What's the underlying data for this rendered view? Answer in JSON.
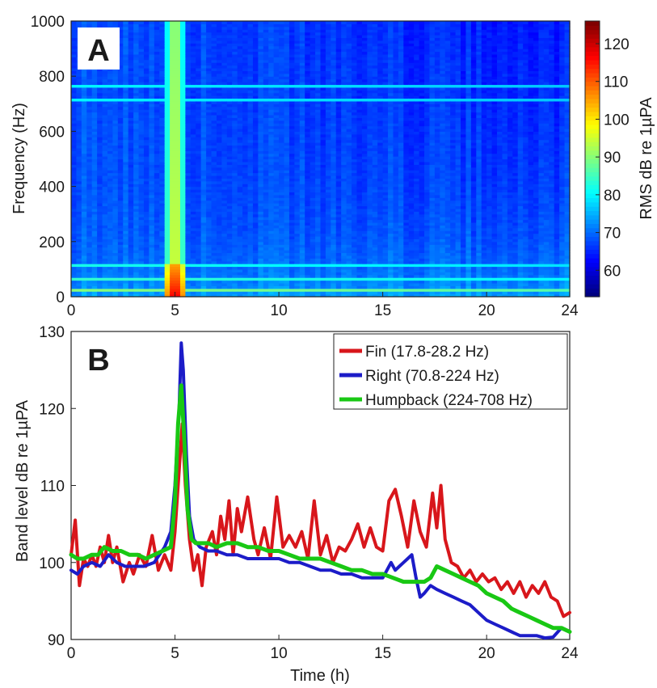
{
  "chart_data": [
    {
      "panel": "A",
      "type": "heatmap",
      "xlabel": "",
      "ylabel": "Frequency (Hz)",
      "xlim": [
        0,
        24
      ],
      "ylim": [
        0,
        1000
      ],
      "xticks": [
        "0",
        "5",
        "10",
        "15",
        "20",
        "24"
      ],
      "yticks": [
        "0",
        "200",
        "400",
        "600",
        "800",
        "1000"
      ],
      "colorbar": {
        "label": "RMS dB re 1µPA",
        "range": [
          53,
          126
        ],
        "ticks": [
          "60",
          "70",
          "80",
          "90",
          "100",
          "110",
          "120"
        ],
        "colormap": "jet"
      },
      "background_level_db": 68,
      "features": [
        {
          "kind": "vertical_band",
          "time_h": 5.0,
          "level_db": 100,
          "hot_level_db": 122,
          "hot_freq_range": [
            0,
            120
          ]
        },
        {
          "kind": "horizontal_band",
          "freq_hz": 25,
          "level_db": 90
        },
        {
          "kind": "horizontal_band",
          "freq_hz": 60,
          "level_db": 84
        },
        {
          "kind": "horizontal_band",
          "freq_hz": 110,
          "level_db": 82
        },
        {
          "kind": "horizontal_band",
          "freq_hz": 710,
          "level_db": 80
        },
        {
          "kind": "horizontal_band",
          "freq_hz": 760,
          "level_db": 80
        }
      ]
    },
    {
      "panel": "B",
      "type": "line",
      "xlabel": "Time (h)",
      "ylabel": "Band level dB re 1µPA",
      "xlim": [
        0,
        24
      ],
      "ylim": [
        90,
        130
      ],
      "xticks": [
        "0",
        "5",
        "10",
        "15",
        "20",
        "24"
      ],
      "yticks": [
        "90",
        "100",
        "110",
        "120",
        "130"
      ],
      "legend_position": "top-right",
      "series": [
        {
          "name": "Fin (17.8-28.2 Hz)",
          "color": "#d8161b",
          "x": [
            0,
            0.2,
            0.4,
            0.6,
            0.8,
            1.0,
            1.2,
            1.4,
            1.6,
            1.8,
            2.0,
            2.2,
            2.5,
            2.8,
            3.0,
            3.3,
            3.6,
            3.9,
            4.2,
            4.5,
            4.8,
            5.0,
            5.2,
            5.35,
            5.5,
            5.7,
            5.9,
            6.1,
            6.3,
            6.5,
            6.8,
            7.0,
            7.2,
            7.4,
            7.6,
            7.8,
            8.0,
            8.2,
            8.5,
            8.8,
            9.0,
            9.3,
            9.6,
            9.9,
            10.2,
            10.5,
            10.8,
            11.1,
            11.4,
            11.7,
            12.0,
            12.3,
            12.6,
            12.9,
            13.2,
            13.5,
            13.8,
            14.1,
            14.4,
            14.7,
            15.0,
            15.3,
            15.6,
            15.9,
            16.2,
            16.5,
            16.8,
            17.1,
            17.4,
            17.6,
            17.8,
            18.0,
            18.3,
            18.6,
            18.9,
            19.2,
            19.5,
            19.8,
            20.1,
            20.4,
            20.7,
            21.0,
            21.3,
            21.6,
            21.9,
            22.2,
            22.5,
            22.8,
            23.1,
            23.4,
            23.7,
            24.0
          ],
          "values": [
            101,
            105.5,
            97,
            100.5,
            99.5,
            101,
            99.5,
            102,
            100,
            103.5,
            100,
            102,
            97.5,
            100,
            98.5,
            101,
            99.5,
            103.5,
            99,
            101,
            99,
            104,
            112,
            118,
            110,
            103,
            99,
            101,
            97,
            102,
            104,
            101,
            106,
            103,
            108,
            101,
            107,
            104,
            108.5,
            103,
            101,
            104.5,
            100.5,
            108.5,
            102,
            103.5,
            102,
            104,
            100.5,
            108,
            101,
            103.5,
            100,
            102,
            101.5,
            103,
            105,
            102,
            104.5,
            102,
            101.5,
            108,
            109.5,
            106,
            102,
            108,
            104,
            102,
            109,
            104.5,
            110,
            103,
            100,
            99.5,
            98,
            99,
            97.5,
            98.5,
            97.5,
            98,
            96.5,
            97.5,
            96,
            97.5,
            95.5,
            97,
            96,
            97.5,
            95.5,
            95,
            93,
            93.5
          ]
        },
        {
          "name": "Right (70.8-224 Hz)",
          "color": "#1c1cc8",
          "x": [
            0,
            0.3,
            0.6,
            1.0,
            1.4,
            1.8,
            2.2,
            2.6,
            3.0,
            3.5,
            4.0,
            4.5,
            4.8,
            5.0,
            5.2,
            5.3,
            5.4,
            5.55,
            5.7,
            5.9,
            6.2,
            6.6,
            7.0,
            7.5,
            8.0,
            8.5,
            9.0,
            9.5,
            10.0,
            10.5,
            11.0,
            11.5,
            12.0,
            12.5,
            13.0,
            13.5,
            14.0,
            14.5,
            15.0,
            15.2,
            15.4,
            15.6,
            15.8,
            16.0,
            16.2,
            16.4,
            16.6,
            16.8,
            17.0,
            17.3,
            17.6,
            18.0,
            18.4,
            18.8,
            19.2,
            19.6,
            20.0,
            20.4,
            20.8,
            21.2,
            21.6,
            22.0,
            22.4,
            22.8,
            23.2,
            23.6,
            24.0
          ],
          "values": [
            99,
            98.5,
            99.5,
            100,
            99.5,
            101,
            100,
            99.5,
            99.5,
            99.5,
            100,
            102,
            104,
            110,
            120,
            128.5,
            125,
            114,
            106,
            103,
            102,
            101.5,
            101.5,
            101,
            101,
            100.5,
            100.5,
            100.5,
            100.5,
            100,
            100,
            99.5,
            99,
            99,
            98.5,
            98.5,
            98,
            98,
            98,
            99,
            100,
            99,
            99.5,
            100,
            100.5,
            101,
            98,
            95.5,
            96,
            97,
            96.5,
            96,
            95.5,
            95,
            94.5,
            93.5,
            92.5,
            92,
            91.5,
            91,
            90.5,
            90.5,
            90.5,
            90.2,
            90.3,
            91.5,
            91
          ]
        },
        {
          "name": "Humpback (224-708 Hz)",
          "color": "#19c814",
          "x": [
            0,
            0.3,
            0.6,
            1.0,
            1.3,
            1.6,
            2.0,
            2.4,
            2.8,
            3.2,
            3.6,
            4.0,
            4.4,
            4.8,
            5.0,
            5.15,
            5.3,
            5.45,
            5.6,
            5.8,
            6.0,
            6.3,
            6.6,
            7.0,
            7.5,
            8.0,
            8.5,
            9.0,
            9.5,
            10.0,
            10.5,
            11.0,
            11.5,
            12.0,
            12.5,
            13.0,
            13.5,
            14.0,
            14.5,
            15.0,
            15.5,
            16.0,
            16.5,
            17.0,
            17.3,
            17.6,
            18.0,
            18.4,
            18.8,
            19.2,
            19.6,
            20.0,
            20.4,
            20.8,
            21.2,
            21.6,
            22.0,
            22.4,
            22.8,
            23.2,
            23.6,
            24.0
          ],
          "values": [
            101,
            100.5,
            100.5,
            101,
            101,
            102,
            101.5,
            101.5,
            101,
            101,
            100.5,
            101,
            101.5,
            102,
            108,
            118,
            123,
            116,
            107,
            103,
            102.5,
            102.5,
            102.5,
            102,
            102.5,
            102.5,
            102,
            102,
            101.5,
            101.5,
            101,
            100.5,
            100.5,
            100.5,
            100,
            99.5,
            99,
            99,
            98.5,
            98.5,
            98,
            97.5,
            97.5,
            97.5,
            98,
            99.5,
            99,
            98.5,
            98,
            97.5,
            97,
            96,
            95.5,
            95,
            94,
            93.5,
            93,
            92.5,
            92,
            91.5,
            91.5,
            91
          ]
        }
      ]
    }
  ],
  "panel_labels": {
    "a": "A",
    "b": "B"
  }
}
